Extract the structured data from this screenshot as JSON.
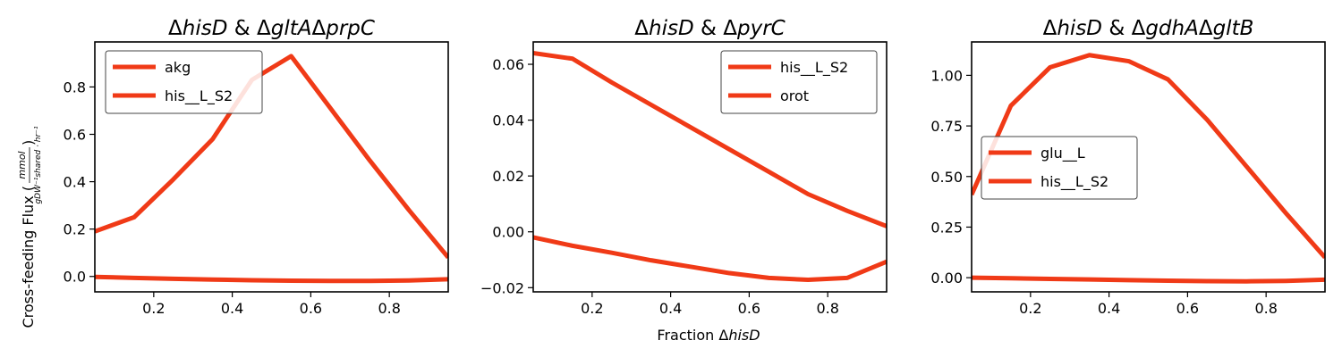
{
  "chart_data": [
    {
      "type": "line",
      "title_parts": [
        {
          "text": "Δ",
          "italic": false
        },
        {
          "text": "hisD",
          "italic": true
        },
        {
          "text": " & Δ",
          "italic": false
        },
        {
          "text": "gltA",
          "italic": true
        },
        {
          "text": "Δ",
          "italic": false
        },
        {
          "text": "prpC",
          "italic": true
        }
      ],
      "xlim": [
        0.05,
        0.95
      ],
      "ylim": [
        -0.065,
        0.99
      ],
      "xticks": [
        0.2,
        0.4,
        0.6,
        0.8
      ],
      "yticks": [
        0.0,
        0.2,
        0.4,
        0.6,
        0.8
      ],
      "ytick_labels": [
        "0.0",
        "0.2",
        "0.4",
        "0.6",
        "0.8"
      ],
      "legend_position": "upper-left",
      "x": [
        0.05,
        0.15,
        0.25,
        0.35,
        0.45,
        0.55,
        0.65,
        0.75,
        0.85,
        0.95
      ],
      "series": [
        {
          "name": "akg",
          "values": [
            -0.002,
            -0.006,
            -0.01,
            -0.013,
            -0.016,
            -0.018,
            -0.019,
            -0.019,
            -0.017,
            -0.012
          ]
        },
        {
          "name": "his__L_S2",
          "values": [
            0.19,
            0.25,
            0.41,
            0.58,
            0.83,
            0.93,
            0.71,
            0.49,
            0.28,
            0.08
          ]
        }
      ]
    },
    {
      "type": "line",
      "title_parts": [
        {
          "text": "Δ",
          "italic": false
        },
        {
          "text": "hisD",
          "italic": true
        },
        {
          "text": " & Δ",
          "italic": false
        },
        {
          "text": "pyrC",
          "italic": true
        }
      ],
      "xlim": [
        0.05,
        0.95
      ],
      "ylim": [
        -0.0215,
        0.068
      ],
      "xticks": [
        0.2,
        0.4,
        0.6,
        0.8
      ],
      "yticks": [
        -0.02,
        0.0,
        0.02,
        0.04,
        0.06
      ],
      "ytick_labels": [
        "−0.02",
        "0.00",
        "0.02",
        "0.04",
        "0.06"
      ],
      "legend_position": "upper-right",
      "x": [
        0.05,
        0.15,
        0.25,
        0.35,
        0.45,
        0.55,
        0.65,
        0.75,
        0.85,
        0.95
      ],
      "series": [
        {
          "name": "his__L_S2",
          "values": [
            0.064,
            0.062,
            0.0535,
            0.0455,
            0.0375,
            0.0295,
            0.0215,
            0.0135,
            0.0075,
            0.002
          ]
        },
        {
          "name": "orot",
          "values": [
            -0.002,
            -0.005,
            -0.0075,
            -0.0102,
            -0.0125,
            -0.0148,
            -0.0165,
            -0.0172,
            -0.0165,
            -0.0107
          ]
        }
      ]
    },
    {
      "type": "line",
      "title_parts": [
        {
          "text": "Δ",
          "italic": false
        },
        {
          "text": "hisD",
          "italic": true
        },
        {
          "text": " & Δ",
          "italic": false
        },
        {
          "text": "gdhA",
          "italic": true
        },
        {
          "text": "Δ",
          "italic": false
        },
        {
          "text": "gltB",
          "italic": true
        }
      ],
      "xlim": [
        0.05,
        0.95
      ],
      "ylim": [
        -0.07,
        1.165
      ],
      "xticks": [
        0.2,
        0.4,
        0.6,
        0.8
      ],
      "yticks": [
        0.0,
        0.25,
        0.5,
        0.75,
        1.0
      ],
      "ytick_labels": [
        "0.00",
        "0.25",
        "0.50",
        "0.75",
        "1.00"
      ],
      "legend_position": "center-left",
      "x": [
        0.05,
        0.15,
        0.25,
        0.35,
        0.45,
        0.55,
        0.65,
        0.75,
        0.85,
        0.95
      ],
      "series": [
        {
          "name": "glu__L",
          "values": [
            0.0,
            -0.003,
            -0.006,
            -0.009,
            -0.012,
            -0.015,
            -0.017,
            -0.018,
            -0.016,
            -0.01
          ]
        },
        {
          "name": "his__L_S2",
          "values": [
            0.41,
            0.85,
            1.04,
            1.1,
            1.07,
            0.98,
            0.78,
            0.55,
            0.32,
            0.1
          ]
        }
      ]
    }
  ],
  "xtick_labels": [
    "0.2",
    "0.4",
    "0.6",
    "0.8"
  ],
  "xlabel_parts": [
    {
      "text": "Fraction Δ",
      "italic": false
    },
    {
      "text": "hisD",
      "italic": true
    }
  ],
  "ylabel_text": "Cross-feeding Flux (",
  "ylabel_unit_num": "mmol",
  "ylabel_unit_den": "gDW⁻¹shared · hr⁻¹",
  "ylabel_close": ")",
  "line_color": "#f03a17"
}
